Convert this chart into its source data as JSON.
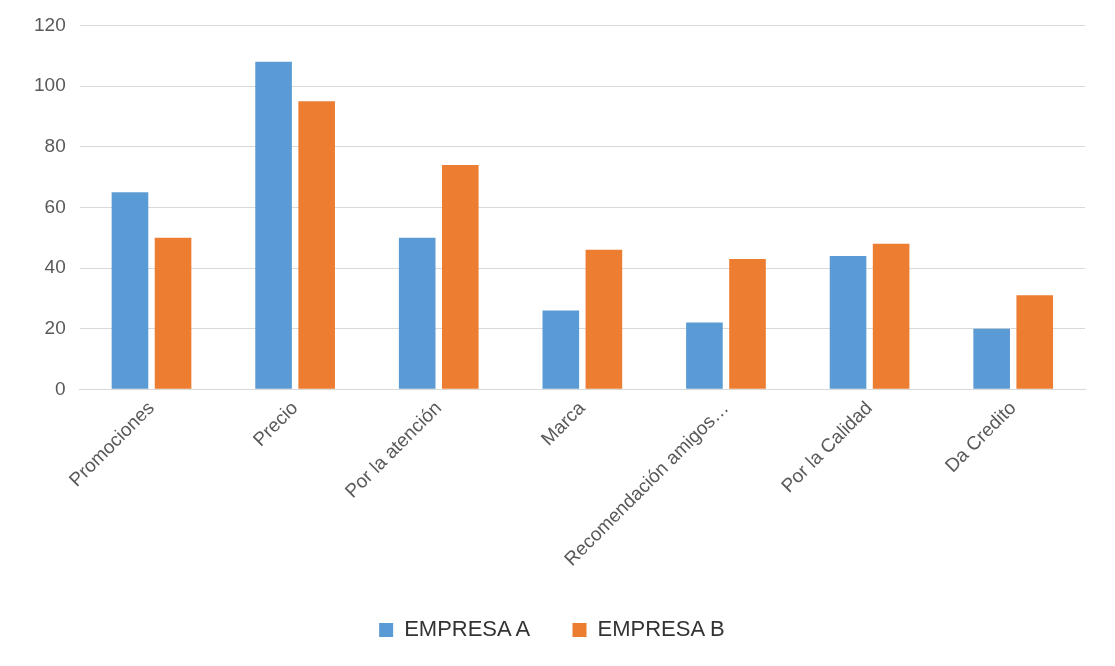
{
  "chart_data": {
    "type": "bar",
    "categories": [
      "Promociones",
      "Precio",
      "Por la atención",
      "Marca",
      "Recomendación amigos…",
      "Por la Calidad",
      "Da Credito"
    ],
    "series": [
      {
        "name": "EMPRESA A",
        "color": "#5b9bd5",
        "values": [
          65,
          108,
          50,
          26,
          22,
          44,
          20
        ]
      },
      {
        "name": "EMPRESA B",
        "color": "#ed7d31",
        "values": [
          50,
          95,
          74,
          46,
          43,
          48,
          31
        ]
      }
    ],
    "ylim": [
      0,
      120
    ],
    "yticks": [
      0,
      20,
      40,
      60,
      80,
      100,
      120
    ],
    "grid": "y",
    "legend": "bottom"
  }
}
